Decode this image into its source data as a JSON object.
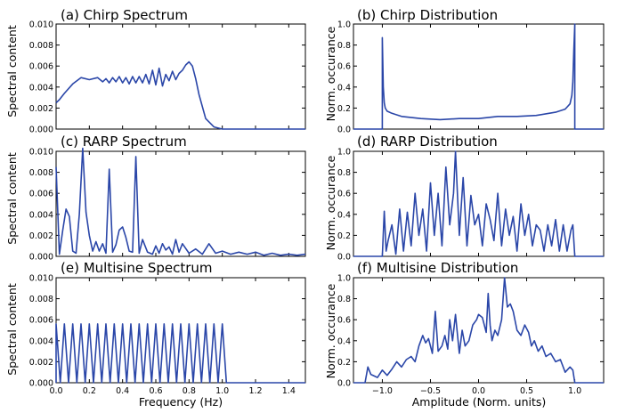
{
  "figure": {
    "line_color": "#2a46a8"
  },
  "chart_data": [
    {
      "type": "line",
      "title": "(a) Chirp Spectrum",
      "ylabel": "Spectral content",
      "xlabel": "",
      "xlim": [
        0,
        1.5
      ],
      "ylim": [
        0,
        0.01
      ],
      "yticks": [
        "0.000",
        "0.002",
        "0.004",
        "0.006",
        "0.008",
        "0.010"
      ],
      "x": [
        0.0,
        0.02,
        0.05,
        0.1,
        0.15,
        0.2,
        0.25,
        0.28,
        0.3,
        0.32,
        0.34,
        0.36,
        0.38,
        0.4,
        0.42,
        0.44,
        0.46,
        0.48,
        0.5,
        0.52,
        0.54,
        0.56,
        0.58,
        0.6,
        0.62,
        0.64,
        0.66,
        0.68,
        0.7,
        0.72,
        0.74,
        0.76,
        0.78,
        0.8,
        0.82,
        0.84,
        0.86,
        0.9,
        0.95,
        1.0,
        1.5
      ],
      "y": [
        0.0025,
        0.0028,
        0.0034,
        0.0043,
        0.0049,
        0.0047,
        0.0049,
        0.0045,
        0.0048,
        0.0044,
        0.0049,
        0.0045,
        0.005,
        0.0044,
        0.0049,
        0.0043,
        0.005,
        0.0044,
        0.005,
        0.0044,
        0.0052,
        0.0043,
        0.0056,
        0.0042,
        0.0058,
        0.0041,
        0.0052,
        0.0046,
        0.0055,
        0.0047,
        0.0053,
        0.0056,
        0.0061,
        0.0064,
        0.006,
        0.0048,
        0.0033,
        0.001,
        0.0002,
        0.0,
        0.0
      ]
    },
    {
      "type": "line",
      "title": "(b) Chirp Distribution",
      "ylabel": "Norm. occurance",
      "xlabel": "",
      "xlim": [
        -1.3,
        1.3
      ],
      "ylim": [
        0,
        1.0
      ],
      "yticks": [
        "0.0",
        "0.2",
        "0.4",
        "0.6",
        "0.8",
        "1.0"
      ],
      "x": [
        -1.3,
        -1.0,
        -1.0,
        -0.99,
        -0.98,
        -0.97,
        -0.95,
        -0.9,
        -0.8,
        -0.6,
        -0.4,
        -0.2,
        0.0,
        0.2,
        0.4,
        0.6,
        0.8,
        0.9,
        0.95,
        0.97,
        0.98,
        0.99,
        1.0,
        1.0,
        1.3
      ],
      "y": [
        0.0,
        0.0,
        0.87,
        0.4,
        0.25,
        0.2,
        0.17,
        0.15,
        0.12,
        0.1,
        0.09,
        0.1,
        0.1,
        0.12,
        0.12,
        0.13,
        0.16,
        0.19,
        0.24,
        0.32,
        0.45,
        0.75,
        1.0,
        0.0,
        0.0
      ]
    },
    {
      "type": "line",
      "title": "(c) RARP Spectrum",
      "ylabel": "Spectral content",
      "xlabel": "",
      "xlim": [
        0,
        1.5
      ],
      "ylim": [
        0,
        0.01
      ],
      "yticks": [
        "0.000",
        "0.002",
        "0.004",
        "0.006",
        "0.008",
        "0.010"
      ],
      "x": [
        0.0,
        0.02,
        0.04,
        0.06,
        0.08,
        0.1,
        0.12,
        0.14,
        0.16,
        0.18,
        0.2,
        0.22,
        0.24,
        0.26,
        0.28,
        0.3,
        0.32,
        0.34,
        0.36,
        0.38,
        0.4,
        0.42,
        0.44,
        0.46,
        0.48,
        0.5,
        0.52,
        0.55,
        0.58,
        0.6,
        0.62,
        0.64,
        0.66,
        0.68,
        0.7,
        0.72,
        0.74,
        0.76,
        0.8,
        0.84,
        0.88,
        0.92,
        0.96,
        1.0,
        1.05,
        1.1,
        1.15,
        1.2,
        1.25,
        1.3,
        1.35,
        1.4,
        1.45,
        1.5
      ],
      "y": [
        0.0085,
        0.0002,
        0.0025,
        0.0045,
        0.0038,
        0.0005,
        0.0003,
        0.004,
        0.0103,
        0.0042,
        0.002,
        0.0005,
        0.0014,
        0.0005,
        0.0012,
        0.0003,
        0.0083,
        0.0004,
        0.0011,
        0.0025,
        0.0028,
        0.0018,
        0.0005,
        0.0004,
        0.0095,
        0.0003,
        0.0016,
        0.0004,
        0.0002,
        0.001,
        0.0003,
        0.0012,
        0.0006,
        0.0009,
        0.0002,
        0.0016,
        0.0004,
        0.0012,
        0.0003,
        0.0007,
        0.0002,
        0.0012,
        0.0003,
        0.0005,
        0.0002,
        0.0004,
        0.0002,
        0.0004,
        0.0001,
        0.0003,
        0.0001,
        0.0002,
        0.0001,
        0.0002
      ]
    },
    {
      "type": "line",
      "title": "(d) RARP Distribution",
      "ylabel": "Norm. occurance",
      "xlabel": "",
      "xlim": [
        -1.3,
        1.3
      ],
      "ylim": [
        0,
        1.0
      ],
      "yticks": [
        "0.0",
        "0.2",
        "0.4",
        "0.6",
        "0.8",
        "1.0"
      ],
      "x": [
        -1.3,
        -1.0,
        -0.98,
        -0.96,
        -0.94,
        -0.9,
        -0.86,
        -0.82,
        -0.78,
        -0.74,
        -0.7,
        -0.66,
        -0.62,
        -0.58,
        -0.54,
        -0.5,
        -0.46,
        -0.42,
        -0.38,
        -0.34,
        -0.3,
        -0.26,
        -0.24,
        -0.2,
        -0.16,
        -0.12,
        -0.08,
        -0.04,
        0.0,
        0.04,
        0.08,
        0.12,
        0.16,
        0.2,
        0.24,
        0.28,
        0.32,
        0.36,
        0.4,
        0.44,
        0.48,
        0.52,
        0.56,
        0.6,
        0.64,
        0.68,
        0.72,
        0.76,
        0.8,
        0.84,
        0.88,
        0.92,
        0.96,
        0.98,
        1.0,
        1.3
      ],
      "y": [
        0.0,
        0.0,
        0.43,
        0.05,
        0.15,
        0.3,
        0.02,
        0.45,
        0.05,
        0.42,
        0.1,
        0.6,
        0.2,
        0.45,
        0.05,
        0.7,
        0.2,
        0.6,
        0.1,
        0.85,
        0.3,
        0.6,
        1.0,
        0.2,
        0.75,
        0.1,
        0.58,
        0.3,
        0.4,
        0.1,
        0.5,
        0.35,
        0.15,
        0.6,
        0.1,
        0.45,
        0.2,
        0.38,
        0.05,
        0.5,
        0.2,
        0.4,
        0.1,
        0.3,
        0.25,
        0.05,
        0.3,
        0.1,
        0.35,
        0.05,
        0.3,
        0.05,
        0.25,
        0.3,
        0.0,
        0.0
      ]
    },
    {
      "type": "line",
      "title": "(e) Multisine Spectrum",
      "ylabel": "Spectral content",
      "xlabel": "Frequency (Hz)",
      "xlim": [
        0,
        1.5
      ],
      "ylim": [
        0,
        0.01
      ],
      "yticks": [
        "0.000",
        "0.002",
        "0.004",
        "0.006",
        "0.008",
        "0.010"
      ],
      "xticks": [
        "0.0",
        "0.2",
        "0.4",
        "0.6",
        "0.8",
        "1.0",
        "1.2",
        "1.4"
      ],
      "x": [
        0.0,
        0.05,
        0.1,
        0.15,
        0.2,
        0.25,
        0.3,
        0.35,
        0.4,
        0.45,
        0.5,
        0.55,
        0.6,
        0.65,
        0.7,
        0.75,
        0.8,
        0.85,
        0.9,
        0.95,
        1.0
      ],
      "y": [
        0.0056,
        0.0056,
        0.0056,
        0.0056,
        0.0056,
        0.0056,
        0.0056,
        0.0056,
        0.0056,
        0.0056,
        0.0056,
        0.0056,
        0.0056,
        0.0056,
        0.0056,
        0.0056,
        0.0056,
        0.0056,
        0.0056,
        0.0056,
        0.0056
      ],
      "line_shape": "triangular peaks, base half-width 0.025 Hz; curve from 0.0056 at x=0 to 0.0 at x=1.5"
    },
    {
      "type": "line",
      "title": "(f) Multisine Distribution",
      "ylabel": "Norm. occurance",
      "xlabel": "Amplitude (Norm. units)",
      "xlim": [
        -1.3,
        1.3
      ],
      "ylim": [
        0,
        1.0
      ],
      "yticks": [
        "0.0",
        "0.2",
        "0.4",
        "0.6",
        "0.8",
        "1.0"
      ],
      "xticks": [
        "-1.0",
        "-0.5",
        "0.0",
        "0.5",
        "1.0"
      ],
      "x": [
        -1.3,
        -1.18,
        -1.15,
        -1.12,
        -1.05,
        -1.0,
        -0.95,
        -0.9,
        -0.85,
        -0.8,
        -0.75,
        -0.7,
        -0.66,
        -0.62,
        -0.58,
        -0.55,
        -0.52,
        -0.48,
        -0.45,
        -0.42,
        -0.38,
        -0.35,
        -0.32,
        -0.3,
        -0.27,
        -0.24,
        -0.2,
        -0.17,
        -0.14,
        -0.1,
        -0.06,
        -0.02,
        0.0,
        0.04,
        0.08,
        0.1,
        0.12,
        0.14,
        0.17,
        0.2,
        0.24,
        0.27,
        0.3,
        0.33,
        0.36,
        0.4,
        0.44,
        0.48,
        0.52,
        0.55,
        0.58,
        0.62,
        0.66,
        0.7,
        0.75,
        0.8,
        0.85,
        0.9,
        0.95,
        0.98,
        1.0,
        1.3
      ],
      "y": [
        0.0,
        0.0,
        0.15,
        0.08,
        0.05,
        0.12,
        0.07,
        0.13,
        0.2,
        0.15,
        0.22,
        0.25,
        0.2,
        0.35,
        0.45,
        0.38,
        0.42,
        0.28,
        0.68,
        0.3,
        0.35,
        0.45,
        0.32,
        0.6,
        0.4,
        0.65,
        0.28,
        0.5,
        0.35,
        0.4,
        0.55,
        0.6,
        0.65,
        0.62,
        0.48,
        0.85,
        0.55,
        0.4,
        0.5,
        0.45,
        0.6,
        1.0,
        0.72,
        0.75,
        0.68,
        0.5,
        0.45,
        0.55,
        0.48,
        0.35,
        0.4,
        0.3,
        0.35,
        0.25,
        0.28,
        0.2,
        0.22,
        0.1,
        0.15,
        0.12,
        0.0,
        0.0
      ]
    }
  ]
}
